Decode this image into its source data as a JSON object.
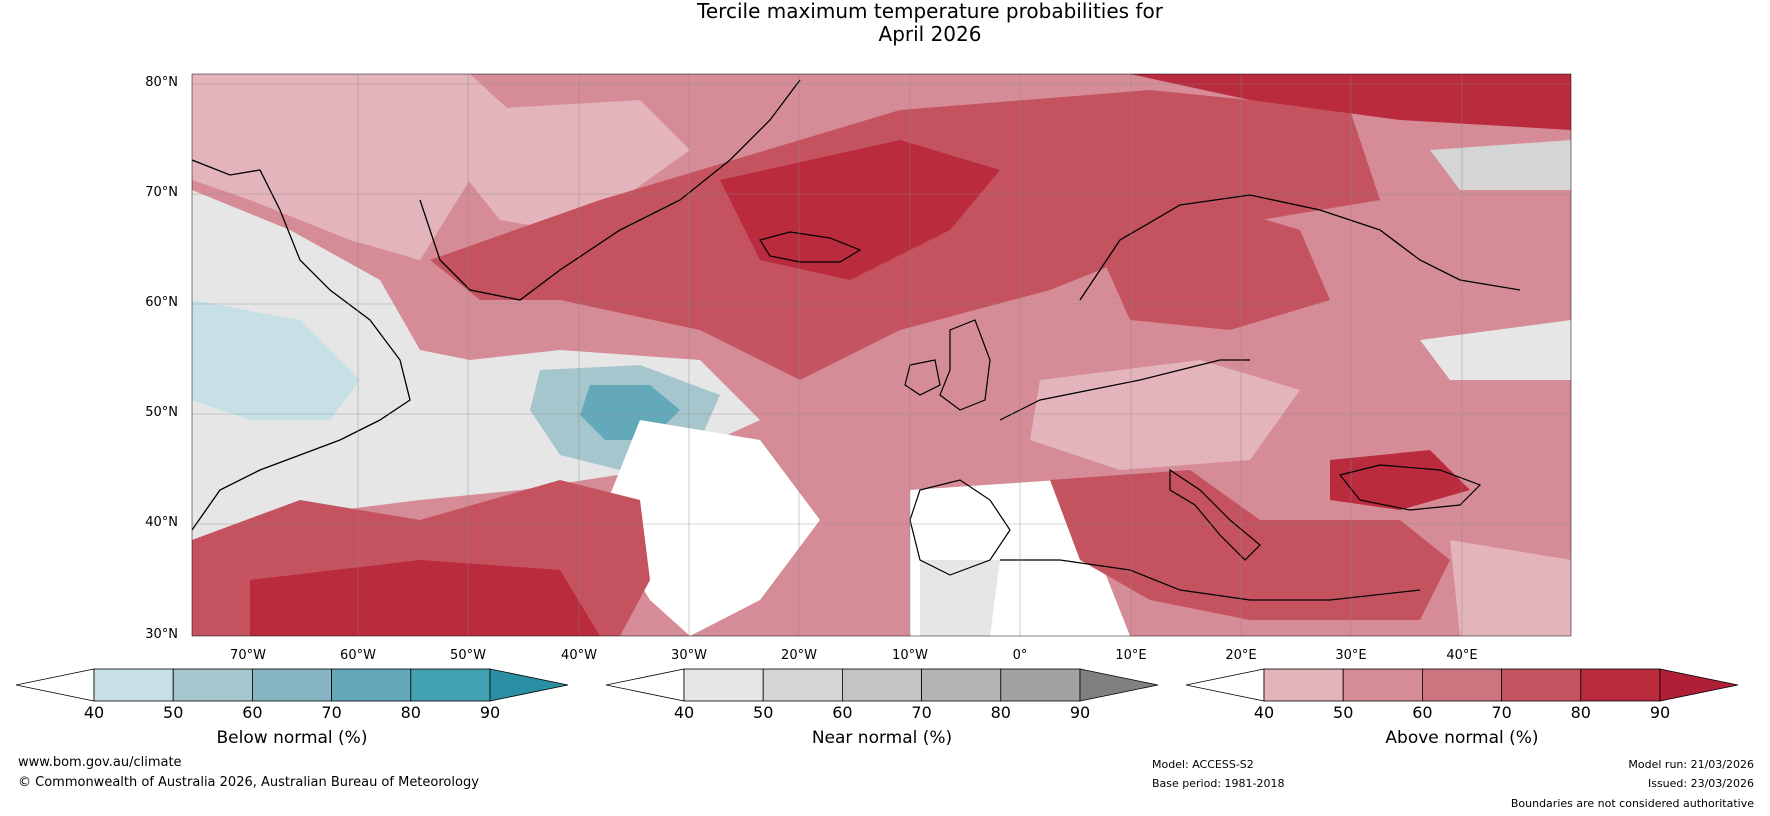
{
  "title_line1": "Tercile maximum temperature probabilities for",
  "title_line2": "April 2026",
  "latitude_labels": [
    "80°N",
    "70°N",
    "60°N",
    "50°N",
    "40°N",
    "30°N"
  ],
  "longitude_labels": [
    "70°W",
    "60°W",
    "50°W",
    "40°W",
    "30°W",
    "20°W",
    "10°W",
    "0°",
    "10°E",
    "20°E",
    "30°E",
    "40°E"
  ],
  "legends": {
    "below": {
      "label": "Below normal (%)",
      "ticks": [
        "40",
        "50",
        "60",
        "70",
        "80",
        "90"
      ],
      "colors": [
        "#ffffff",
        "#c6e0e6",
        "#a6c6cd",
        "#86b4c2",
        "#64a9b9",
        "#43a2b2",
        "#2a8fa2"
      ]
    },
    "near": {
      "label": "Near normal (%)",
      "ticks": [
        "40",
        "50",
        "60",
        "70",
        "80",
        "90"
      ],
      "colors": [
        "#ffffff",
        "#e6e6e6",
        "#d5d5d5",
        "#c4c4c4",
        "#b4b4b4",
        "#a2a2a2",
        "#808080"
      ]
    },
    "above": {
      "label": "Above normal (%)",
      "ticks": [
        "40",
        "50",
        "60",
        "70",
        "80",
        "90"
      ],
      "colors": [
        "#ffffff",
        "#e3b4bc",
        "#d68c97",
        "#cc7580",
        "#c4535f",
        "#b92b3d",
        "#b01f36"
      ]
    }
  },
  "footer": {
    "website": "www.bom.gov.au/climate",
    "copyright": "© Commonwealth of Australia 2026, Australian Bureau of Meteorology",
    "model": "Model: ACCESS-S2",
    "base_period": "Base period: 1981-2018",
    "model_run": "Model run: 21/03/2026",
    "issued": "Issued: 23/03/2026",
    "disclaimer": "Boundaries are not considered authoritative"
  }
}
